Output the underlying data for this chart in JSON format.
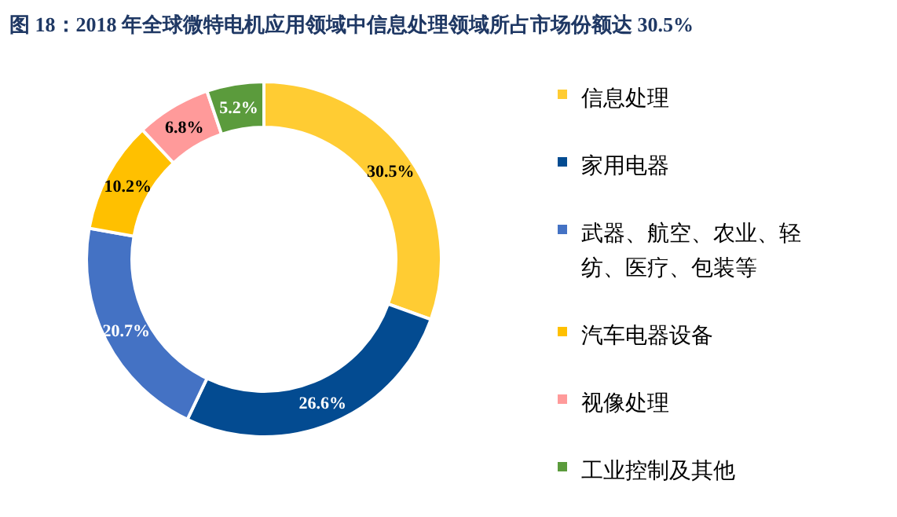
{
  "chart_data": {
    "type": "donut",
    "title": "图 18：2018 年全球微特电机应用领域中信息处理领域所占市场份额达 30.5%",
    "categories": [
      "信息处理",
      "家用电器",
      "武器、航空、农业、轻纺、医疗、包装等",
      "汽车电器设备",
      "视像处理",
      "工业控制及其他"
    ],
    "values": [
      30.5,
      26.6,
      20.7,
      10.2,
      6.8,
      5.2
    ],
    "value_labels": [
      "30.5%",
      "26.6%",
      "20.7%",
      "10.2%",
      "6.8%",
      "5.2%"
    ],
    "colors": [
      "#ffcc33",
      "#034b91",
      "#4472c4",
      "#ffc000",
      "#ff9a9a",
      "#5b9b3c"
    ],
    "legend": "right"
  }
}
